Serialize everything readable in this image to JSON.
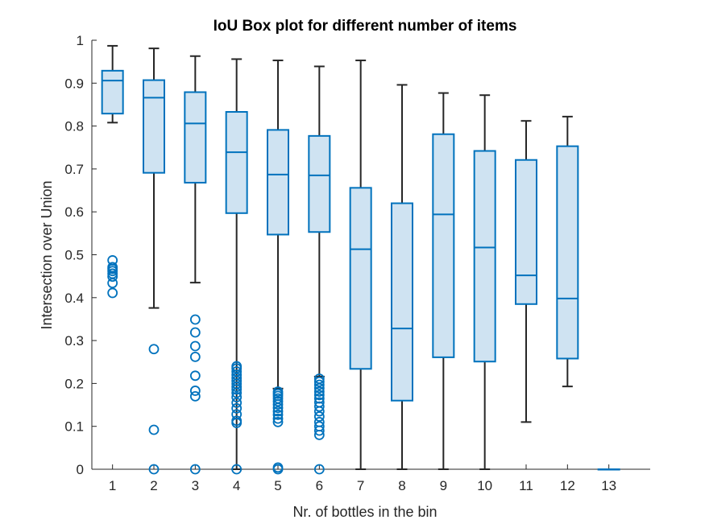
{
  "chart_data": {
    "type": "box",
    "title": "IoU Box plot for different number of items",
    "xlabel": "Nr. of bottles in the bin",
    "ylabel": "Intersection over Union",
    "ylim": [
      0,
      1
    ],
    "yticks": [
      "0",
      "0.1",
      "0.2",
      "0.3",
      "0.4",
      "0.5",
      "0.6",
      "0.7",
      "0.8",
      "0.9",
      "1"
    ],
    "categories": [
      "1",
      "2",
      "3",
      "4",
      "5",
      "6",
      "7",
      "8",
      "9",
      "10",
      "11",
      "12",
      "13"
    ],
    "grid": false,
    "colors": {
      "box_edge": "#0072BD",
      "box_fill": "#CFE3F2",
      "whisker": "#262626",
      "axis": "#262626"
    },
    "boxes": [
      {
        "category": "1",
        "whisker_low": 0.808,
        "q1": 0.829,
        "median": 0.906,
        "q3": 0.929,
        "whisker_high": 0.987,
        "outliers": [
          0.411,
          0.434,
          0.449,
          0.456,
          0.462,
          0.467,
          0.471,
          0.487
        ]
      },
      {
        "category": "2",
        "whisker_low": 0.376,
        "q1": 0.691,
        "median": 0.866,
        "q3": 0.907,
        "whisker_high": 0.981,
        "outliers": [
          0.0,
          0.092,
          0.28
        ]
      },
      {
        "category": "3",
        "whisker_low": 0.435,
        "q1": 0.668,
        "median": 0.806,
        "q3": 0.879,
        "whisker_high": 0.963,
        "outliers": [
          0.0,
          0.17,
          0.183,
          0.218,
          0.262,
          0.287,
          0.319,
          0.349
        ]
      },
      {
        "category": "4",
        "whisker_low": 0.0,
        "q1": 0.597,
        "median": 0.739,
        "q3": 0.833,
        "whisker_high": 0.956,
        "outliers": [
          0.0,
          0.108,
          0.113,
          0.128,
          0.142,
          0.155,
          0.168,
          0.178,
          0.186,
          0.192,
          0.199,
          0.206,
          0.213,
          0.22,
          0.228,
          0.235,
          0.24
        ]
      },
      {
        "category": "5",
        "whisker_low": 0.188,
        "q1": 0.547,
        "median": 0.687,
        "q3": 0.791,
        "whisker_high": 0.953,
        "outliers": [
          0.0,
          0.004,
          0.11,
          0.118,
          0.127,
          0.135,
          0.143,
          0.151,
          0.158,
          0.165,
          0.171,
          0.176,
          0.181
        ]
      },
      {
        "category": "6",
        "whisker_low": 0.216,
        "q1": 0.553,
        "median": 0.685,
        "q3": 0.777,
        "whisker_high": 0.939,
        "outliers": [
          0.0,
          0.08,
          0.09,
          0.1,
          0.11,
          0.123,
          0.135,
          0.146,
          0.156,
          0.165,
          0.173,
          0.181,
          0.189,
          0.197,
          0.204,
          0.211
        ]
      },
      {
        "category": "7",
        "whisker_low": 0.0,
        "q1": 0.234,
        "median": 0.513,
        "q3": 0.656,
        "whisker_high": 0.953,
        "outliers": []
      },
      {
        "category": "8",
        "whisker_low": 0.0,
        "q1": 0.16,
        "median": 0.328,
        "q3": 0.62,
        "whisker_high": 0.896,
        "outliers": []
      },
      {
        "category": "9",
        "whisker_low": 0.0,
        "q1": 0.261,
        "median": 0.594,
        "q3": 0.781,
        "whisker_high": 0.877,
        "outliers": []
      },
      {
        "category": "10",
        "whisker_low": 0.0,
        "q1": 0.251,
        "median": 0.517,
        "q3": 0.742,
        "whisker_high": 0.872,
        "outliers": []
      },
      {
        "category": "11",
        "whisker_low": 0.11,
        "q1": 0.385,
        "median": 0.452,
        "q3": 0.721,
        "whisker_high": 0.812,
        "outliers": []
      },
      {
        "category": "12",
        "whisker_low": 0.193,
        "q1": 0.258,
        "median": 0.398,
        "q3": 0.753,
        "whisker_high": 0.822,
        "outliers": []
      },
      {
        "category": "13",
        "whisker_low": 0.0,
        "q1": 0.0,
        "median": 0.0,
        "q3": 0.0,
        "whisker_high": 0.0,
        "outliers": []
      }
    ]
  }
}
